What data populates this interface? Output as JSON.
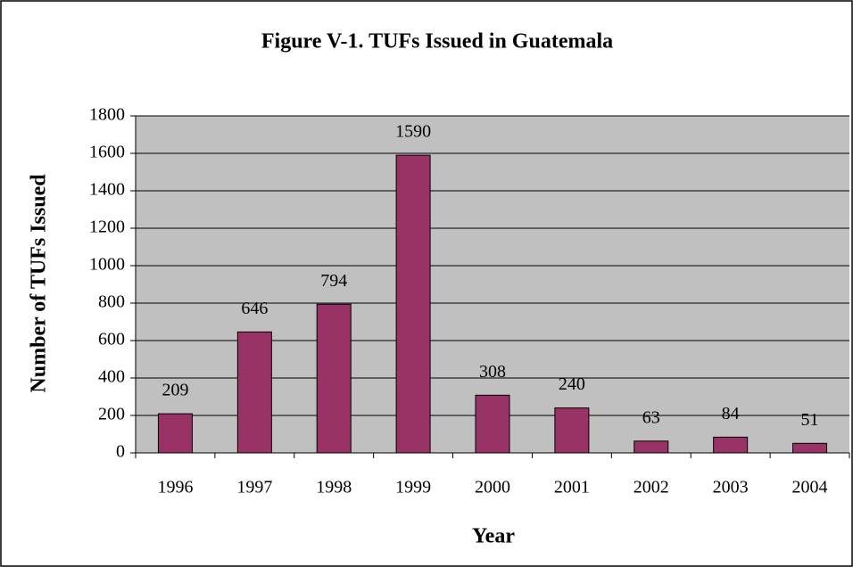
{
  "chart_data": {
    "type": "bar",
    "title": "Figure V-1. TUFs Issued in Guatemala",
    "x_label": "Year",
    "y_label": "Number of TUFs Issued",
    "categories": [
      "1996",
      "1997",
      "1998",
      "1999",
      "2000",
      "2001",
      "2002",
      "2003",
      "2004"
    ],
    "values": [
      209,
      646,
      794,
      1590,
      308,
      240,
      63,
      84,
      51
    ],
    "color": "#993366",
    "ylim": [
      0,
      1800
    ],
    "yticks": [
      0,
      200,
      400,
      600,
      800,
      1000,
      1200,
      1400,
      1600,
      1800
    ],
    "grid": true
  }
}
